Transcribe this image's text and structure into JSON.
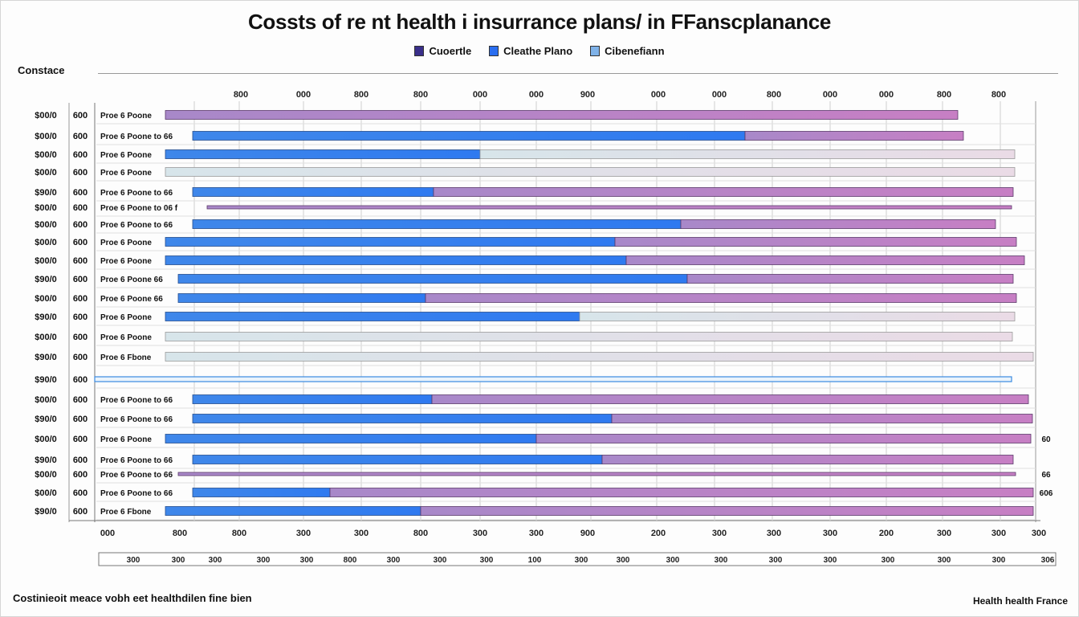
{
  "page": {
    "corner_label": "Constace",
    "footer_left": "Costinieoit meace vobh eet healthdilen fine bien",
    "footer_right": "Health health France"
  },
  "legend": [
    {
      "label": "Cuoertle",
      "color": "#3a2f8a"
    },
    {
      "label": "Cleathe Plano",
      "color": "#2a6ef0"
    },
    {
      "label": "Cibenefiann",
      "color": "#7fb2e8"
    }
  ],
  "chart_data": {
    "type": "bar",
    "title": "Cossts of re nt health i insurrance  plans/ in FFanscplanance",
    "orientation": "horizontal",
    "stacked": true,
    "grid": true,
    "top_axis_ticks": [
      "800",
      "000",
      "800",
      "800",
      "000",
      "000",
      "900",
      "000",
      "000",
      "800",
      "000",
      "000",
      "800",
      "800"
    ],
    "bottom_axis_ticks": [
      "000",
      "800",
      "800",
      "300",
      "300",
      "800",
      "300",
      "300",
      "900",
      "200",
      "300",
      "300",
      "300",
      "200",
      "300",
      "300",
      "300"
    ],
    "bottom_scale_ticks": [
      "300",
      "300",
      "300",
      "300",
      "300",
      "800",
      "300",
      "300",
      "300",
      "100",
      "300",
      "300",
      "300",
      "300",
      "300",
      "300",
      "300",
      "300",
      "300"
    ],
    "right_values": [
      "",
      "",
      "",
      "",
      "",
      "",
      "",
      "",
      "",
      "",
      "",
      "",
      "",
      "",
      "",
      "",
      "",
      "60",
      "",
      "66",
      "606"
    ],
    "rows": [
      {
        "label_a": "$00/0",
        "label_b": "600",
        "label_c": "Proe 6 Poone",
        "blue": 0,
        "pink": 987,
        "start": 88
      },
      {
        "label_a": "$00/0",
        "label_b": "600",
        "label_c": "Proe 6 Poone to 66",
        "blue": 688,
        "pink": 272,
        "start": 122
      },
      {
        "label_a": "$00/0",
        "label_b": "600",
        "label_c": "Proe 6 Poone",
        "blue": 392,
        "pink": 666,
        "start": 88
      },
      {
        "label_a": "$00/0",
        "label_b": "600",
        "label_c": "Proe 6 Poone",
        "blue": 0,
        "pink": 1058,
        "start": 88
      },
      {
        "label_a": "$90/0",
        "label_b": "600",
        "label_c": "Proe 6 Poone to 66",
        "blue": 300,
        "pink": 722,
        "start": 122
      },
      {
        "label_a": "$00/0",
        "label_b": "600",
        "label_c": "Proe 6 Poone to 06 f",
        "blue": 0,
        "pink": 1002,
        "start": 140
      },
      {
        "label_a": "$00/0",
        "label_b": "600",
        "label_c": "Proe 6 Poone to 66",
        "blue": 608,
        "pink": 392,
        "start": 122
      },
      {
        "label_a": "$00/0",
        "label_b": "600",
        "label_c": "Proe 6 Poone",
        "blue": 560,
        "pink": 500,
        "start": 88
      },
      {
        "label_a": "$00/0",
        "label_b": "600",
        "label_c": "Proe 6 Poone",
        "blue": 574,
        "pink": 496,
        "start": 88
      },
      {
        "label_a": "$90/0",
        "label_b": "600",
        "label_c": "Proe 6 Poone 66",
        "blue": 634,
        "pink": 406,
        "start": 104
      },
      {
        "label_a": "$00/0",
        "label_b": "600",
        "label_c": "Proe 6 Poone 66",
        "blue": 308,
        "pink": 736,
        "start": 104
      },
      {
        "label_a": "$90/0",
        "label_b": "600",
        "label_c": "Proe 6 Poone",
        "blue": 516,
        "pink": 542,
        "start": 88
      },
      {
        "label_a": "$00/0",
        "label_b": "600",
        "label_c": "Proe 6 Poone",
        "blue": 0,
        "pink": 1055,
        "start": 88
      },
      {
        "label_a": "$90/0",
        "label_b": "600",
        "label_c": "Proe 6 Fbone",
        "blue": 0,
        "pink": 1081,
        "start": 88
      },
      {
        "label_a": "$90/0",
        "label_b": "600",
        "label_c": "",
        "blue": 1142,
        "pink": 0,
        "start": 0
      },
      {
        "label_a": "$00/0",
        "label_b": "600",
        "label_c": "Proe 6 Poone to 66",
        "blue": 298,
        "pink": 743,
        "start": 122
      },
      {
        "label_a": "$90/0",
        "label_b": "600",
        "label_c": "Proe 6 Poone to 66",
        "blue": 522,
        "pink": 524,
        "start": 122
      },
      {
        "label_a": "$00/0",
        "label_b": "600",
        "label_c": "Proe 6 Poone",
        "blue": 462,
        "pink": 616,
        "start": 88
      },
      {
        "label_a": "$90/0",
        "label_b": "600",
        "label_c": "Proe 6 Poone to 66",
        "blue": 510,
        "pink": 512,
        "start": 122
      },
      {
        "label_a": "$00/0",
        "label_b": "600",
        "label_c": "Proe 6 Poone to 66",
        "blue": 0,
        "pink": 1043,
        "start": 104
      },
      {
        "label_a": "$00/0",
        "label_b": "600",
        "label_c": "Proe 6 Poone to 66",
        "blue": 171,
        "pink": 876,
        "start": 122
      },
      {
        "label_a": "$90/0",
        "label_b": "600",
        "label_c": "Proe 6 Fbone",
        "blue": 318,
        "pink": 763,
        "start": 88
      }
    ]
  }
}
